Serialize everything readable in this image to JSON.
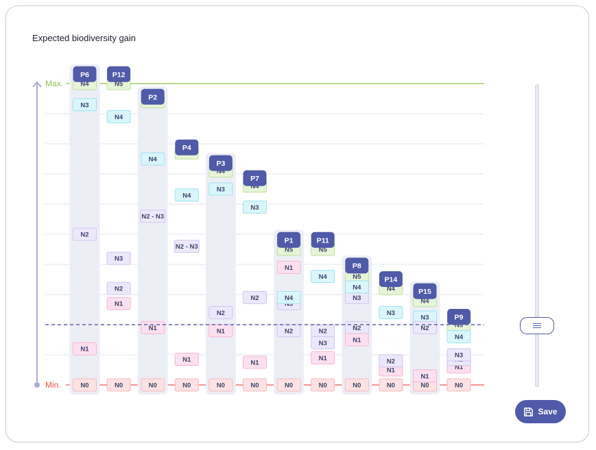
{
  "chart_data": {
    "type": "scatter",
    "title": "Expected biodiversity gain",
    "xlabel": "",
    "ylabel": "",
    "y_axis_labels": {
      "max": "Max.",
      "min": "Min."
    },
    "ylim": [
      0,
      10
    ],
    "threshold": 2.0,
    "grid": true,
    "colors": {
      "max_line": "#8bc34a",
      "min_line": "#ef5350",
      "threshold_line": "#5c63a8",
      "header": "#4f5aa8",
      "column_bg": "#eceef6",
      "N0": "#fde2e4",
      "N1": "#fde0ef",
      "N2": "#ece8fb",
      "N3": "#d9f6fb",
      "N4": "#d9f6fb",
      "N5": "#e6f4d7"
    },
    "columns": [
      {
        "label": "P6",
        "top": 10.55,
        "highlight": true,
        "items": [
          {
            "label": "N4",
            "value": 10.0,
            "level": "N4g"
          },
          {
            "label": "N3",
            "value": 9.3,
            "level": "N3"
          },
          {
            "label": "N2",
            "value": 5.0,
            "level": "N2"
          },
          {
            "label": "N1",
            "value": 1.2,
            "level": "N1"
          },
          {
            "label": "N0",
            "value": 0.0,
            "level": "N0"
          }
        ]
      },
      {
        "label": "P12",
        "top": 10.55,
        "highlight": false,
        "items": [
          {
            "label": "N5",
            "value": 10.0,
            "level": "N5"
          },
          {
            "label": "N4",
            "value": 8.9,
            "level": "N3"
          },
          {
            "label": "N3",
            "value": 4.2,
            "level": "N2"
          },
          {
            "label": "N2",
            "value": 3.2,
            "level": "N2"
          },
          {
            "label": "N1",
            "value": 2.7,
            "level": "N1"
          },
          {
            "label": "N0",
            "value": 0.0,
            "level": "N0"
          }
        ]
      },
      {
        "label": "P2",
        "top": 9.8,
        "highlight": true,
        "items": [
          {
            "label": "N5",
            "value": 9.4,
            "level": "N5"
          },
          {
            "label": "N4",
            "value": 7.5,
            "level": "N3"
          },
          {
            "label": "N2 - N3",
            "value": 5.6,
            "level": "N2"
          },
          {
            "label": "N1",
            "value": 1.9,
            "level": "N1"
          },
          {
            "label": "N0",
            "value": 0.0,
            "level": "N0"
          }
        ]
      },
      {
        "label": "P4",
        "top": 8.12,
        "highlight": false,
        "items": [
          {
            "label": "N5",
            "value": 7.7,
            "level": "N5"
          },
          {
            "label": "N4",
            "value": 6.3,
            "level": "N3"
          },
          {
            "label": "N2 - N3",
            "value": 4.6,
            "level": "N2"
          },
          {
            "label": "N1",
            "value": 0.85,
            "level": "N1"
          },
          {
            "label": "N0",
            "value": 0.0,
            "level": "N0"
          }
        ]
      },
      {
        "label": "P3",
        "top": 7.6,
        "highlight": true,
        "items": [
          {
            "label": "N4",
            "value": 7.1,
            "level": "N5"
          },
          {
            "label": "N3",
            "value": 6.5,
            "level": "N3"
          },
          {
            "label": "N2",
            "value": 2.4,
            "level": "N2"
          },
          {
            "label": "N1",
            "value": 1.8,
            "level": "N1"
          },
          {
            "label": "N0",
            "value": 0.0,
            "level": "N0"
          }
        ]
      },
      {
        "label": "P7",
        "top": 7.1,
        "highlight": false,
        "items": [
          {
            "label": "N4",
            "value": 6.6,
            "level": "N5"
          },
          {
            "label": "N3",
            "value": 5.9,
            "level": "N3"
          },
          {
            "label": "N2",
            "value": 2.9,
            "level": "N2"
          },
          {
            "label": "N1",
            "value": 0.75,
            "level": "N1"
          },
          {
            "label": "N0",
            "value": 0.0,
            "level": "N0"
          }
        ]
      },
      {
        "label": "P1",
        "top": 5.05,
        "highlight": true,
        "items": [
          {
            "label": "N5",
            "value": 4.5,
            "level": "N5"
          },
          {
            "label": "N1",
            "value": 3.9,
            "level": "N1"
          },
          {
            "label": "N3",
            "value": 2.7,
            "level": "N2"
          },
          {
            "label": "N4",
            "value": 2.9,
            "level": "N3"
          },
          {
            "label": "N2",
            "value": 1.8,
            "level": "N2"
          },
          {
            "label": "N0",
            "value": 0.0,
            "level": "N0"
          }
        ]
      },
      {
        "label": "P11",
        "top": 5.05,
        "highlight": false,
        "items": [
          {
            "label": "N5",
            "value": 4.5,
            "level": "N5"
          },
          {
            "label": "N4",
            "value": 3.6,
            "level": "N3"
          },
          {
            "label": "N2",
            "value": 1.8,
            "level": "N2"
          },
          {
            "label": "N3",
            "value": 1.4,
            "level": "N2"
          },
          {
            "label": "N1",
            "value": 0.9,
            "level": "N1"
          },
          {
            "label": "N0",
            "value": 0.0,
            "level": "N0"
          }
        ]
      },
      {
        "label": "P8",
        "top": 4.2,
        "highlight": true,
        "items": [
          {
            "label": "N5",
            "value": 3.6,
            "level": "N5"
          },
          {
            "label": "N3",
            "value": 2.9,
            "level": "N2"
          },
          {
            "label": "N4",
            "value": 3.25,
            "level": "N3"
          },
          {
            "label": "N2",
            "value": 1.9,
            "level": "N2"
          },
          {
            "label": "N1",
            "value": 1.5,
            "level": "N1"
          },
          {
            "label": "N0",
            "value": 0.0,
            "level": "N0"
          }
        ]
      },
      {
        "label": "P14",
        "top": 3.75,
        "highlight": false,
        "items": [
          {
            "label": "N4",
            "value": 3.2,
            "level": "N5"
          },
          {
            "label": "N3",
            "value": 2.4,
            "level": "N3"
          },
          {
            "label": "N1",
            "value": 0.5,
            "level": "N1"
          },
          {
            "label": "N2",
            "value": 0.8,
            "level": "N2"
          },
          {
            "label": "N0",
            "value": 0.0,
            "level": "N0"
          }
        ]
      },
      {
        "label": "P15",
        "top": 3.35,
        "highlight": true,
        "items": [
          {
            "label": "N4",
            "value": 2.8,
            "level": "N5"
          },
          {
            "label": "N3",
            "value": 2.25,
            "level": "N3"
          },
          {
            "label": "N2",
            "value": 1.9,
            "level": "N2"
          },
          {
            "label": "N0",
            "value": 0.0,
            "level": "N0"
          },
          {
            "label": "N1",
            "value": 0.3,
            "level": "N1"
          }
        ]
      },
      {
        "label": "P9",
        "top": 2.5,
        "highlight": false,
        "items": [
          {
            "label": "N5",
            "value": 2.0,
            "level": "N5"
          },
          {
            "label": "N4",
            "value": 1.6,
            "level": "N3"
          },
          {
            "label": "N1",
            "value": 0.6,
            "level": "N1"
          },
          {
            "label": "N2",
            "value": 0.85,
            "level": "N2"
          },
          {
            "label": "N3",
            "value": 1.0,
            "level": "N2"
          },
          {
            "label": "N0",
            "value": 0.0,
            "level": "N0"
          }
        ]
      }
    ]
  },
  "save_button": {
    "label": "Save",
    "icon": "floppy-disk-icon"
  },
  "slider": {
    "icon": "menu-lines-icon",
    "value": 2.0
  }
}
